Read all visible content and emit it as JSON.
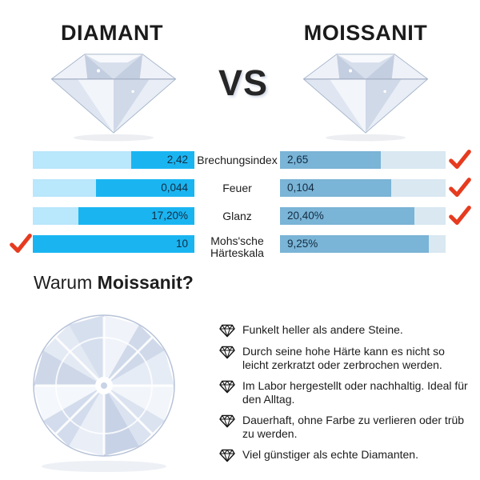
{
  "header": {
    "left_title": "DIAMANT",
    "vs_label": "VS",
    "right_title": "MOISSANIT"
  },
  "comparison": {
    "rows": [
      {
        "label": "Brechungsindex",
        "left_value": "2,42",
        "left_pct": 39,
        "right_value": "2,65",
        "right_pct": 61,
        "winner": "right"
      },
      {
        "label": "Feuer",
        "left_value": "0,044",
        "left_pct": 61,
        "right_value": "0,104",
        "right_pct": 67,
        "winner": "right"
      },
      {
        "label": "Glanz",
        "left_value": "17,20%",
        "left_pct": 72,
        "right_value": "20,40%",
        "right_pct": 81,
        "winner": "right"
      },
      {
        "label": "Mohs'sche Härteskala",
        "left_value": "10",
        "left_pct": 100,
        "right_value": "9,25%",
        "right_pct": 90,
        "winner": "left"
      }
    ],
    "colors": {
      "left_track": "#b9e7fb",
      "left_fill": "#1ab5f1",
      "right_track": "#d9e8f1",
      "right_fill": "#7ab4d6",
      "check": "#e63b1f",
      "value_text": "#132c42"
    }
  },
  "why": {
    "prefix": "Warum ",
    "highlight": "Moissanit?"
  },
  "benefits": [
    "Funkelt heller als andere Steine.",
    "Durch seine hohe Härte kann es nicht so leicht zerkratzt oder zerbrochen werden.",
    "Im Labor hergestellt oder nachhaltig. Ideal für den Alltag.",
    "Dauerhaft, ohne Farbe zu verlieren oder trüb zu werden.",
    "Viel günstiger als echte Diamanten."
  ],
  "chart_data": {
    "type": "bar",
    "title": "Diamant vs Moissanit Vergleich",
    "categories": [
      "Brechungsindex",
      "Feuer",
      "Glanz",
      "Mohs'sche Härteskala"
    ],
    "series": [
      {
        "name": "Diamant",
        "values": [
          2.42,
          0.044,
          17.2,
          10
        ],
        "display": [
          "2,42",
          "0,044",
          "17,20%",
          "10"
        ]
      },
      {
        "name": "Moissanit",
        "values": [
          2.65,
          0.104,
          20.4,
          9.25
        ],
        "display": [
          "2,65",
          "0,104",
          "20,40%",
          "9,25%"
        ]
      }
    ],
    "legend_position": "none",
    "grid": false,
    "orientation": "horizontal"
  }
}
